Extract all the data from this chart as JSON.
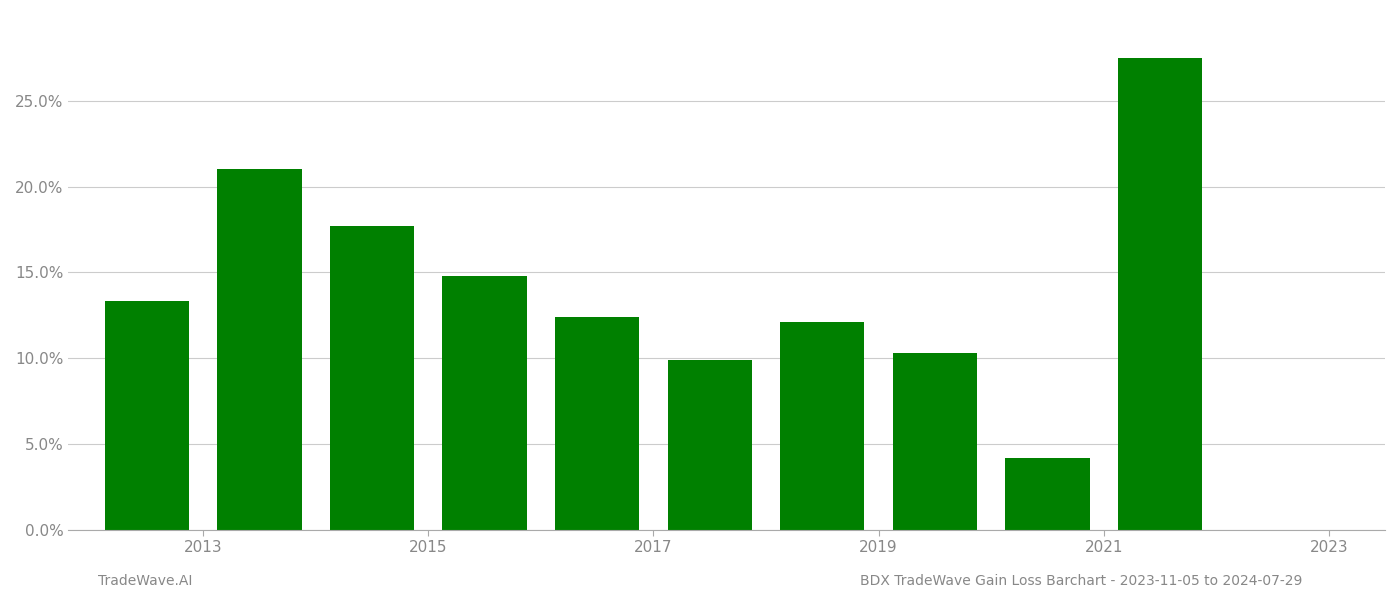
{
  "bar_centers": [
    2012.5,
    2013.5,
    2014.5,
    2015.5,
    2016.5,
    2017.5,
    2018.5,
    2019.5,
    2020.5,
    2021.5,
    2022.5
  ],
  "values": [
    0.133,
    0.21,
    0.177,
    0.148,
    0.124,
    0.099,
    0.121,
    0.103,
    0.042,
    0.275,
    0.0
  ],
  "bar_color": "#008000",
  "background_color": "#ffffff",
  "ylim": [
    0,
    0.3
  ],
  "yticks": [
    0.0,
    0.05,
    0.1,
    0.15,
    0.2,
    0.25
  ],
  "xtick_positions": [
    2013,
    2015,
    2017,
    2019,
    2021,
    2023
  ],
  "xtick_labels": [
    "2013",
    "2015",
    "2017",
    "2019",
    "2021",
    "2023"
  ],
  "xlim": [
    2011.8,
    2023.5
  ],
  "footer_left": "TradeWave.AI",
  "footer_right": "BDX TradeWave Gain Loss Barchart - 2023-11-05 to 2024-07-29",
  "grid_color": "#cccccc",
  "tick_label_color": "#888888",
  "footer_color": "#888888",
  "bar_width": 0.75
}
